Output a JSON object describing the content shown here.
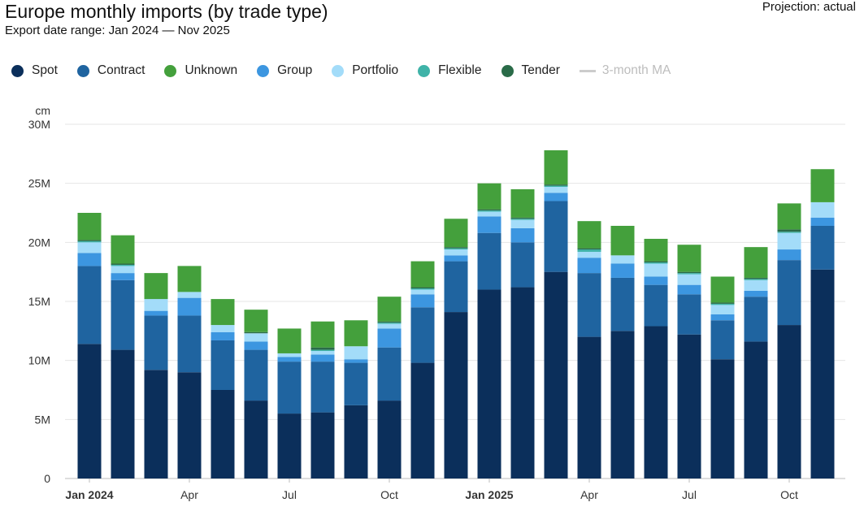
{
  "header": {
    "title": "Europe monthly imports (by trade type)",
    "subtitle": "Export date range: Jan 2024 — Nov 2025",
    "projection": "Projection: actual"
  },
  "legend": [
    {
      "name": "Spot",
      "color": "#0b2f5b"
    },
    {
      "name": "Contract",
      "color": "#1f64a0"
    },
    {
      "name": "Unknown",
      "color": "#44a03c"
    },
    {
      "name": "Group",
      "color": "#3c96e0"
    },
    {
      "name": "Portfolio",
      "color": "#a3dcf9"
    },
    {
      "name": "Flexible",
      "color": "#3fb3a8"
    },
    {
      "name": "Tender",
      "color": "#2a6b48"
    }
  ],
  "legend_ma": {
    "name": "3-month MA",
    "color": "#cccccc"
  },
  "chart_data": {
    "type": "bar",
    "stacked": true,
    "title": "Europe monthly imports (by trade type)",
    "ylabel": "cm",
    "ylim": [
      0,
      30000000
    ],
    "yticks": [
      0,
      5000000,
      10000000,
      15000000,
      20000000,
      25000000,
      30000000
    ],
    "ytick_labels": [
      "0",
      "5M",
      "10M",
      "15M",
      "20M",
      "25M",
      "30M"
    ],
    "categories": [
      "Jan 2024",
      "Feb 2024",
      "Mar 2024",
      "Apr 2024",
      "May 2024",
      "Jun 2024",
      "Jul 2024",
      "Aug 2024",
      "Sep 2024",
      "Oct 2024",
      "Nov 2024",
      "Dec 2024",
      "Jan 2025",
      "Feb 2025",
      "Mar 2025",
      "Apr 2025",
      "May 2025",
      "Jun 2025",
      "Jul 2025",
      "Aug 2025",
      "Sep 2025",
      "Oct 2025",
      "Nov 2025"
    ],
    "x_tick_labels": [
      {
        "index": 0,
        "label": "Jan 2024",
        "bold": true
      },
      {
        "index": 3,
        "label": "Apr",
        "bold": false
      },
      {
        "index": 6,
        "label": "Jul",
        "bold": false
      },
      {
        "index": 9,
        "label": "Oct",
        "bold": false
      },
      {
        "index": 12,
        "label": "Jan 2025",
        "bold": true
      },
      {
        "index": 15,
        "label": "Apr",
        "bold": false
      },
      {
        "index": 18,
        "label": "Jul",
        "bold": false
      },
      {
        "index": 21,
        "label": "Oct",
        "bold": false
      }
    ],
    "series": [
      {
        "name": "Spot",
        "values": [
          11.4,
          10.9,
          9.2,
          9.0,
          7.5,
          6.6,
          5.5,
          5.6,
          6.2,
          6.6,
          9.8,
          14.1,
          16.0,
          16.2,
          17.5,
          12.0,
          12.5,
          12.9,
          12.2,
          10.1,
          11.6,
          13.0,
          17.7
        ]
      },
      {
        "name": "Contract",
        "values": [
          6.6,
          5.9,
          4.6,
          4.8,
          4.2,
          4.3,
          4.4,
          4.3,
          3.6,
          4.5,
          4.7,
          4.3,
          4.8,
          3.8,
          6.0,
          5.4,
          4.5,
          3.5,
          3.4,
          3.3,
          3.8,
          5.5,
          3.7
        ]
      },
      {
        "name": "Group",
        "values": [
          1.1,
          0.6,
          0.4,
          1.5,
          0.7,
          0.7,
          0.4,
          0.6,
          0.3,
          1.6,
          1.1,
          0.5,
          1.4,
          1.2,
          0.7,
          1.3,
          1.2,
          0.7,
          0.8,
          0.5,
          0.5,
          0.9,
          0.7
        ]
      },
      {
        "name": "Portfolio",
        "values": [
          0.9,
          0.6,
          1.0,
          0.5,
          0.6,
          0.7,
          0.3,
          0.3,
          1.1,
          0.4,
          0.4,
          0.5,
          0.4,
          0.7,
          0.5,
          0.5,
          0.7,
          1.1,
          0.9,
          0.8,
          0.9,
          1.4,
          1.3
        ]
      },
      {
        "name": "Flexible",
        "values": [
          0.1,
          0.1,
          0.0,
          0.0,
          0.0,
          0.0,
          0.0,
          0.1,
          0.0,
          0.1,
          0.1,
          0.1,
          0.1,
          0.1,
          0.1,
          0.2,
          0.0,
          0.1,
          0.1,
          0.1,
          0.1,
          0.1,
          0.0
        ]
      },
      {
        "name": "Tender",
        "values": [
          0.1,
          0.1,
          0.0,
          0.0,
          0.0,
          0.1,
          0.0,
          0.2,
          0.0,
          0.1,
          0.1,
          0.1,
          0.1,
          0.1,
          0.1,
          0.1,
          0.0,
          0.1,
          0.1,
          0.1,
          0.1,
          0.2,
          0.0
        ]
      },
      {
        "name": "Unknown",
        "values": [
          2.3,
          2.4,
          2.2,
          2.2,
          2.2,
          1.9,
          2.1,
          2.2,
          2.2,
          2.1,
          2.2,
          2.4,
          2.2,
          2.4,
          2.9,
          2.3,
          2.5,
          1.9,
          2.3,
          2.2,
          2.6,
          2.2,
          2.8
        ]
      }
    ],
    "value_unit": "M",
    "legend_position": "top-left",
    "grid": true
  }
}
